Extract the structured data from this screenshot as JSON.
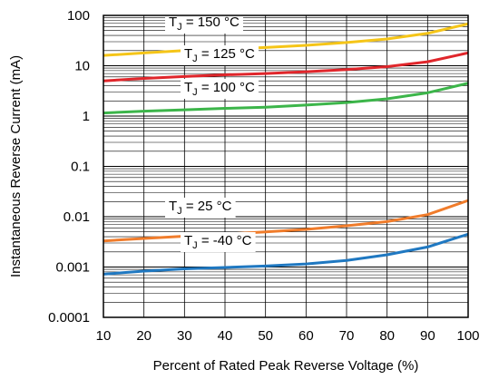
{
  "chart_data": {
    "type": "line",
    "title": "",
    "xlabel": "Percent of Rated Peak Reverse Voltage (%)",
    "ylabel": "Instantaneous Reverse Current (mA)",
    "xlim": [
      10,
      100
    ],
    "ylim": [
      0.0001,
      100
    ],
    "yscale": "log",
    "grid": true,
    "x_ticks": [
      10,
      20,
      30,
      40,
      50,
      60,
      70,
      80,
      90,
      100
    ],
    "x_tick_labels": [
      "10",
      "20",
      "30",
      "40",
      "50",
      "60",
      "70",
      "80",
      "90",
      "100"
    ],
    "y_ticks": [
      0.0001,
      0.001,
      0.01,
      0.1,
      1,
      10,
      100
    ],
    "y_tick_labels": [
      "0.0001",
      "0.001",
      "0.01",
      "0.1",
      "1",
      "10",
      "100"
    ],
    "x": [
      10,
      20,
      30,
      40,
      50,
      60,
      70,
      80,
      90,
      100
    ],
    "series": [
      {
        "label_main": "T",
        "label_sub": "J",
        "label_rest": " = 150 °C",
        "color": "#f5c518",
        "values": [
          16,
          18,
          20,
          21.5,
          23,
          25.5,
          29,
          34,
          44,
          68
        ]
      },
      {
        "label_main": "T",
        "label_sub": "J",
        "label_rest": " = 125 °C",
        "color": "#e0262b",
        "values": [
          5,
          5.6,
          6.1,
          6.6,
          7,
          7.6,
          8.4,
          9.6,
          12,
          18
        ]
      },
      {
        "label_main": "T",
        "label_sub": "J",
        "label_rest": " = 100 °C",
        "color": "#3cb54a",
        "values": [
          1.15,
          1.25,
          1.33,
          1.42,
          1.5,
          1.65,
          1.85,
          2.2,
          2.9,
          4.5
        ]
      },
      {
        "label_main": "T",
        "label_sub": "J",
        "label_rest": " = 25 °C",
        "color": "#f07c2b",
        "values": [
          0.0033,
          0.0037,
          0.0041,
          0.0045,
          0.005,
          0.0056,
          0.0066,
          0.008,
          0.011,
          0.021
        ]
      },
      {
        "label_main": "T",
        "label_sub": "J",
        "label_rest": " = -40 °C",
        "color": "#1f78c1",
        "values": [
          0.00072,
          0.00083,
          0.00092,
          0.00098,
          0.00105,
          0.00115,
          0.00135,
          0.00175,
          0.0025,
          0.0045
        ]
      }
    ]
  }
}
